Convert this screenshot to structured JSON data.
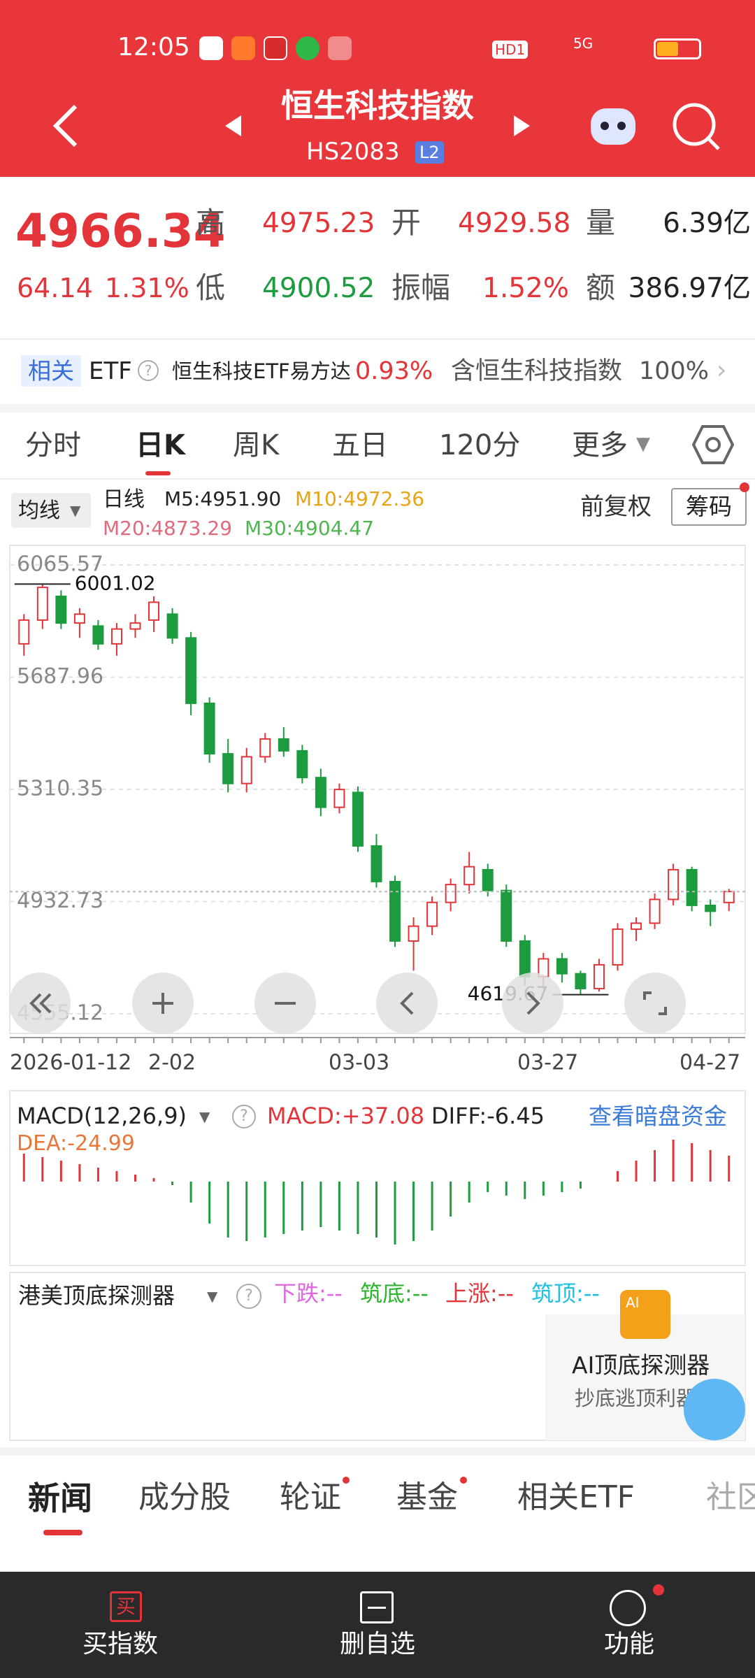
{
  "status_bar": {
    "time": "12:05",
    "hd": "HD1",
    "net": "5G"
  },
  "header": {
    "title": "恒生科技指数",
    "code": "HS2083",
    "badge": "L2"
  },
  "quote": {
    "price": 4966.34,
    "change": "64.14",
    "change_pct": "1.31%",
    "high_label": "高",
    "high": 4975.23,
    "open_label": "开",
    "open": 4929.58,
    "volume_label": "量",
    "volume": "6.39亿",
    "low_label": "低",
    "low": 4900.52,
    "amplitude_label": "振幅",
    "amplitude": "1.52%",
    "amount_label": "额",
    "amount": "386.97亿"
  },
  "etf_row": {
    "tag": "相关",
    "etf": "ETF",
    "name": "恒生科技ETF易方达",
    "change": "0.93%",
    "weight_label": "含恒生科技指数",
    "weight": "100%"
  },
  "chart_tabs": [
    "分时",
    "日K",
    "周K",
    "五日",
    "120分",
    "更多"
  ],
  "legend": {
    "selector": "均线",
    "period": "日线",
    "m5": "M5:4951.90",
    "m10": "M10:4972.36",
    "m20": "M20:4873.29",
    "m30": "M30:4904.47",
    "adjust": "前复权",
    "chips": "筹码"
  },
  "chart_data": {
    "type": "candlestick",
    "ylim": [
      4555.12,
      6065.57
    ],
    "yticks": [
      6065.57,
      5687.96,
      5310.35,
      4932.73,
      4555.12
    ],
    "candles": [
      [
        5800,
        5900,
        5760,
        5880
      ],
      [
        5880,
        6001.02,
        5850,
        5990
      ],
      [
        5960,
        5980,
        5850,
        5870
      ],
      [
        5870,
        5920,
        5820,
        5900
      ],
      [
        5860,
        5880,
        5780,
        5800
      ],
      [
        5800,
        5870,
        5760,
        5850
      ],
      [
        5850,
        5900,
        5820,
        5870
      ],
      [
        5880,
        5960,
        5840,
        5940
      ],
      [
        5900,
        5920,
        5800,
        5820
      ],
      [
        5820,
        5840,
        5560,
        5600
      ],
      [
        5600,
        5620,
        5400,
        5430
      ],
      [
        5430,
        5480,
        5300,
        5330
      ],
      [
        5330,
        5450,
        5300,
        5420
      ],
      [
        5420,
        5500,
        5400,
        5480
      ],
      [
        5480,
        5520,
        5420,
        5440
      ],
      [
        5440,
        5460,
        5330,
        5350
      ],
      [
        5350,
        5380,
        5220,
        5250
      ],
      [
        5250,
        5330,
        5230,
        5310
      ],
      [
        5300,
        5320,
        5100,
        5120
      ],
      [
        5120,
        5160,
        4980,
        5000
      ],
      [
        5000,
        5020,
        4780,
        4800
      ],
      [
        4800,
        4880,
        4700,
        4850
      ],
      [
        4850,
        4950,
        4820,
        4930
      ],
      [
        4930,
        5010,
        4900,
        4990
      ],
      [
        4990,
        5100,
        4960,
        5050
      ],
      [
        5040,
        5060,
        4950,
        4970
      ],
      [
        4970,
        4990,
        4780,
        4800
      ],
      [
        4800,
        4820,
        4650,
        4680
      ],
      [
        4680,
        4760,
        4640,
        4740
      ],
      [
        4740,
        4760,
        4660,
        4690
      ],
      [
        4690,
        4700,
        4619.67,
        4640
      ],
      [
        4640,
        4740,
        4630,
        4720
      ],
      [
        4720,
        4860,
        4700,
        4840
      ],
      [
        4840,
        4880,
        4800,
        4860
      ],
      [
        4860,
        4960,
        4840,
        4940
      ],
      [
        4940,
        5060,
        4920,
        5040
      ],
      [
        5040,
        5050,
        4900,
        4920
      ],
      [
        4920,
        4940,
        4850,
        4900
      ],
      [
        4929.58,
        4975.23,
        4900.52,
        4966.34
      ]
    ],
    "x_labels": [
      "2026-01-12",
      "2-02",
      "03-03",
      "03-27",
      "04-27"
    ],
    "annotations": [
      "6001.02",
      "4619.67"
    ]
  },
  "macd": {
    "title": "MACD(12,26,9)",
    "macd": "MACD:+37.08",
    "diff": "DIFF:-6.45",
    "dea": "DEA:-24.99",
    "link": "查看暗盘资金",
    "ylim": [
      -100,
      100
    ],
    "hist": [
      40,
      35,
      30,
      25,
      20,
      15,
      10,
      5,
      -5,
      -30,
      -60,
      -80,
      -85,
      -80,
      -75,
      -70,
      -65,
      -70,
      -75,
      -80,
      -90,
      -85,
      -70,
      -50,
      -30,
      -15,
      -20,
      -25,
      -20,
      -15,
      -10,
      0,
      15,
      30,
      45,
      60,
      55,
      45,
      37.08
    ]
  },
  "detector": {
    "title": "港美顶底探测器",
    "fall": "下跌:--",
    "bottom": "筑底:--",
    "rise": "上涨:--",
    "top": "筑顶:--",
    "ai_title": "AI顶底探测器",
    "ai_sub": "抄底逃顶利器"
  },
  "news_tabs": [
    "新闻",
    "成分股",
    "轮证",
    "基金",
    "相关ETF",
    "社区"
  ],
  "bottom_nav": [
    "买指数",
    "删自选",
    "功能"
  ],
  "buy_icon": "买"
}
